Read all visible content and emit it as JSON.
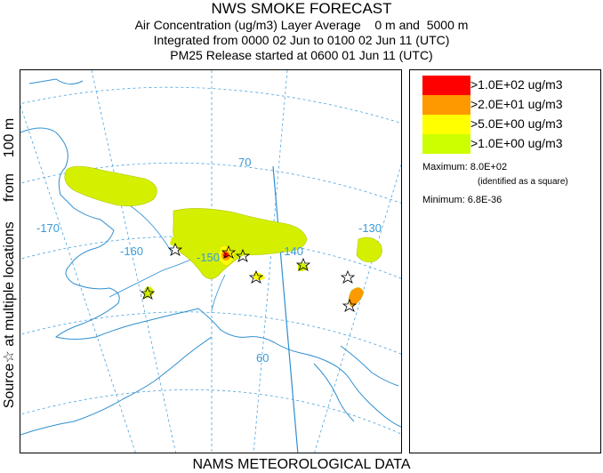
{
  "header": {
    "title": "NWS SMOKE FORECAST",
    "line2": "Air Concentration (ug/m3) Layer Average    0 m and  5000 m",
    "line3": "Integrated from 0000 02 Jun to 0100 02 Jun 11 (UTC)",
    "line4": "PM25 Release started at 0600 01 Jun 11 (UTC)"
  },
  "side_label": "Source☆ at multiple locations     from    100 m",
  "bottom_label": "NAMS METEOROLOGICAL DATA",
  "map": {
    "grid_labels": [
      "-170",
      "-160",
      "-150",
      "-140",
      "-130",
      "70",
      "60"
    ],
    "colors": {
      "coast": "#2f8fd0",
      "grid": "#4aa3df",
      "smoke_light": "#d4f000",
      "smoke_mid": "#ffff00",
      "smoke_orange": "#ff9900",
      "smoke_red": "#ff0000"
    }
  },
  "legend": {
    "items": [
      {
        "label": ">1.0E+02 ug/m3",
        "color": "#ff0000"
      },
      {
        "label": ">2.0E+01 ug/m3",
        "color": "#ff9900"
      },
      {
        "label": ">5.0E+00 ug/m3",
        "color": "#ffff00"
      },
      {
        "label": ">1.0E+00 ug/m3",
        "color": "#ccff00"
      }
    ],
    "maximum": "Maximum: 8.0E+02",
    "max_note": "(identified as a square)",
    "minimum": "Minimum: 6.8E-36"
  }
}
